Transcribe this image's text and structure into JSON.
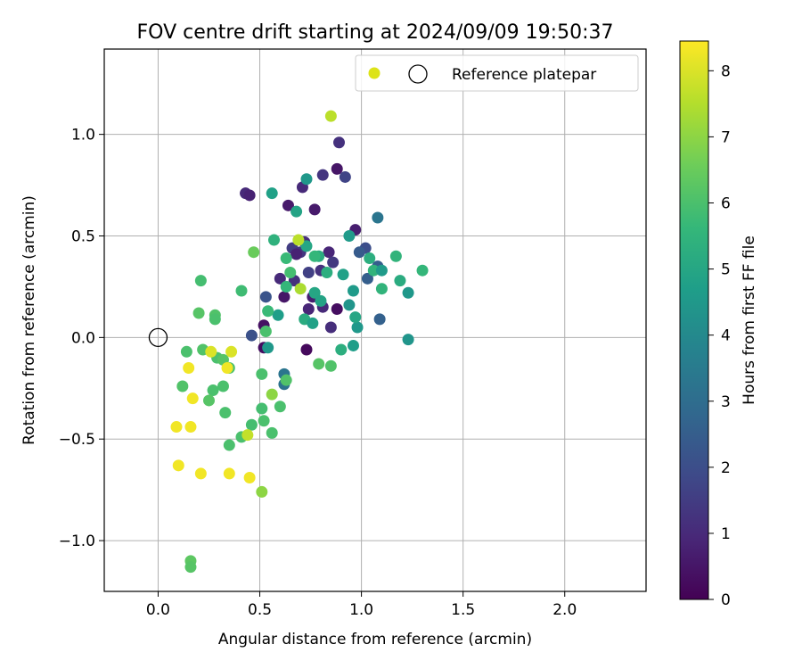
{
  "chart_data": {
    "type": "scatter",
    "title": "FOV centre drift starting at 2024/09/09 19:50:37",
    "xlabel": "Angular distance from reference (arcmin)",
    "ylabel": "Rotation from reference (arcmin)",
    "xlim": [
      -0.265,
      2.4
    ],
    "ylim": [
      -1.25,
      1.42
    ],
    "xticks": [
      0.0,
      0.5,
      1.0,
      1.5,
      2.0
    ],
    "yticks": [
      -1.0,
      -0.5,
      0.0,
      0.5,
      1.0
    ],
    "xtick_labels": [
      "0.0",
      "0.5",
      "1.0",
      "1.5",
      "2.0"
    ],
    "ytick_labels": [
      "−1.0",
      "−0.5",
      "0.0",
      "0.5",
      "1.0"
    ],
    "grid": true,
    "colormap": "viridis",
    "colorbar": {
      "label": "Hours from first FF file",
      "min": 0,
      "max": 8.45,
      "ticks": [
        0,
        1,
        2,
        3,
        4,
        5,
        6,
        7,
        8
      ],
      "tick_labels": [
        "0",
        "1",
        "2",
        "3",
        "4",
        "5",
        "6",
        "7",
        "8"
      ]
    },
    "legend": {
      "placement": "top-right",
      "entries": [
        {
          "label": "",
          "marker": "filled-circle",
          "color": "#dde318"
        },
        {
          "label": "Reference platepar",
          "marker": "open-circle",
          "color": "#000000"
        }
      ]
    },
    "reference_point": {
      "x": 0.0,
      "y": 0.0
    },
    "points": [
      {
        "x": 0.89,
        "y": 0.96,
        "t": 1.2
      },
      {
        "x": 0.88,
        "y": 0.83,
        "t": 0.5
      },
      {
        "x": 0.92,
        "y": 0.79,
        "t": 1.7
      },
      {
        "x": 0.81,
        "y": 0.8,
        "t": 1.3
      },
      {
        "x": 0.43,
        "y": 0.71,
        "t": 1.0
      },
      {
        "x": 0.45,
        "y": 0.7,
        "t": 0.8
      },
      {
        "x": 0.71,
        "y": 0.74,
        "t": 1.0
      },
      {
        "x": 0.64,
        "y": 0.65,
        "t": 0.6
      },
      {
        "x": 0.77,
        "y": 0.63,
        "t": 0.6
      },
      {
        "x": 0.97,
        "y": 0.53,
        "t": 0.7
      },
      {
        "x": 0.66,
        "y": 0.44,
        "t": 1.5
      },
      {
        "x": 0.7,
        "y": 0.42,
        "t": 1.3
      },
      {
        "x": 0.72,
        "y": 0.47,
        "t": 1.1
      },
      {
        "x": 0.68,
        "y": 0.41,
        "t": 0.8
      },
      {
        "x": 0.84,
        "y": 0.42,
        "t": 0.9
      },
      {
        "x": 0.86,
        "y": 0.37,
        "t": 1.4
      },
      {
        "x": 0.8,
        "y": 0.33,
        "t": 1.2
      },
      {
        "x": 0.74,
        "y": 0.32,
        "t": 1.6
      },
      {
        "x": 0.6,
        "y": 0.29,
        "t": 1.0
      },
      {
        "x": 0.62,
        "y": 0.2,
        "t": 0.5
      },
      {
        "x": 0.67,
        "y": 0.28,
        "t": 1.2
      },
      {
        "x": 0.76,
        "y": 0.2,
        "t": 0.7
      },
      {
        "x": 0.74,
        "y": 0.14,
        "t": 0.9
      },
      {
        "x": 0.81,
        "y": 0.15,
        "t": 1.0
      },
      {
        "x": 0.88,
        "y": 0.14,
        "t": 0.3
      },
      {
        "x": 0.85,
        "y": 0.05,
        "t": 1.1
      },
      {
        "x": 0.52,
        "y": 0.06,
        "t": 0.4
      },
      {
        "x": 0.52,
        "y": -0.05,
        "t": 0.3
      },
      {
        "x": 0.73,
        "y": -0.06,
        "t": 0.2
      },
      {
        "x": 0.46,
        "y": 0.01,
        "t": 2.1
      },
      {
        "x": 0.53,
        "y": 0.2,
        "t": 2.2
      },
      {
        "x": 1.02,
        "y": 0.44,
        "t": 2.0
      },
      {
        "x": 0.99,
        "y": 0.42,
        "t": 2.4
      },
      {
        "x": 1.08,
        "y": 0.35,
        "t": 2.5
      },
      {
        "x": 1.03,
        "y": 0.29,
        "t": 2.5
      },
      {
        "x": 1.09,
        "y": 0.09,
        "t": 2.6
      },
      {
        "x": 1.08,
        "y": 0.59,
        "t": 3.3
      },
      {
        "x": 0.62,
        "y": -0.18,
        "t": 3.3
      },
      {
        "x": 0.62,
        "y": -0.23,
        "t": 3.2
      },
      {
        "x": 0.54,
        "y": -0.05,
        "t": 4.5
      },
      {
        "x": 0.94,
        "y": 0.5,
        "t": 4.6
      },
      {
        "x": 0.91,
        "y": 0.31,
        "t": 4.8
      },
      {
        "x": 0.96,
        "y": 0.23,
        "t": 4.6
      },
      {
        "x": 0.94,
        "y": 0.16,
        "t": 4.4
      },
      {
        "x": 0.98,
        "y": 0.05,
        "t": 4.5
      },
      {
        "x": 0.97,
        "y": 0.1,
        "t": 5.0
      },
      {
        "x": 0.96,
        "y": -0.04,
        "t": 4.7
      },
      {
        "x": 0.9,
        "y": -0.06,
        "t": 5.3
      },
      {
        "x": 1.04,
        "y": 0.39,
        "t": 5.3
      },
      {
        "x": 1.06,
        "y": 0.33,
        "t": 5.5
      },
      {
        "x": 1.1,
        "y": 0.33,
        "t": 4.6
      },
      {
        "x": 1.1,
        "y": 0.24,
        "t": 5.5
      },
      {
        "x": 1.17,
        "y": 0.4,
        "t": 5.5
      },
      {
        "x": 1.19,
        "y": 0.28,
        "t": 5.2
      },
      {
        "x": 1.23,
        "y": 0.22,
        "t": 4.5
      },
      {
        "x": 1.23,
        "y": -0.01,
        "t": 4.4
      },
      {
        "x": 1.3,
        "y": 0.33,
        "t": 5.6
      },
      {
        "x": 0.73,
        "y": 0.78,
        "t": 4.5
      },
      {
        "x": 0.56,
        "y": 0.71,
        "t": 4.8
      },
      {
        "x": 0.68,
        "y": 0.62,
        "t": 4.9
      },
      {
        "x": 0.57,
        "y": 0.48,
        "t": 5.4
      },
      {
        "x": 0.73,
        "y": 0.45,
        "t": 5.0
      },
      {
        "x": 0.79,
        "y": 0.4,
        "t": 5.2
      },
      {
        "x": 0.83,
        "y": 0.32,
        "t": 5.3
      },
      {
        "x": 0.77,
        "y": 0.4,
        "t": 5.6
      },
      {
        "x": 0.63,
        "y": 0.39,
        "t": 5.7
      },
      {
        "x": 0.65,
        "y": 0.32,
        "t": 5.9
      },
      {
        "x": 0.63,
        "y": 0.25,
        "t": 5.6
      },
      {
        "x": 0.77,
        "y": 0.22,
        "t": 5.0
      },
      {
        "x": 0.8,
        "y": 0.18,
        "t": 4.9
      },
      {
        "x": 0.72,
        "y": 0.09,
        "t": 5.2
      },
      {
        "x": 0.76,
        "y": 0.07,
        "t": 4.8
      },
      {
        "x": 0.59,
        "y": 0.11,
        "t": 4.7
      },
      {
        "x": 0.54,
        "y": 0.13,
        "t": 5.7
      },
      {
        "x": 0.47,
        "y": 0.42,
        "t": 6.5
      },
      {
        "x": 0.41,
        "y": 0.23,
        "t": 5.8
      },
      {
        "x": 0.21,
        "y": 0.28,
        "t": 5.9
      },
      {
        "x": 0.2,
        "y": 0.12,
        "t": 6.2
      },
      {
        "x": 0.28,
        "y": 0.11,
        "t": 6.1
      },
      {
        "x": 0.28,
        "y": 0.09,
        "t": 6.0
      },
      {
        "x": 0.53,
        "y": 0.03,
        "t": 6.0
      },
      {
        "x": 0.14,
        "y": -0.07,
        "t": 6.0
      },
      {
        "x": 0.22,
        "y": -0.06,
        "t": 6.1
      },
      {
        "x": 0.29,
        "y": -0.1,
        "t": 6.0
      },
      {
        "x": 0.32,
        "y": -0.11,
        "t": 6.2
      },
      {
        "x": 0.35,
        "y": -0.15,
        "t": 6.0
      },
      {
        "x": 0.51,
        "y": -0.18,
        "t": 6.0
      },
      {
        "x": 0.63,
        "y": -0.21,
        "t": 6.1
      },
      {
        "x": 0.12,
        "y": -0.24,
        "t": 6.1
      },
      {
        "x": 0.27,
        "y": -0.26,
        "t": 6.0
      },
      {
        "x": 0.32,
        "y": -0.24,
        "t": 6.0
      },
      {
        "x": 0.25,
        "y": -0.31,
        "t": 6.2
      },
      {
        "x": 0.33,
        "y": -0.37,
        "t": 6.0
      },
      {
        "x": 0.51,
        "y": -0.35,
        "t": 5.9
      },
      {
        "x": 0.6,
        "y": -0.34,
        "t": 6.0
      },
      {
        "x": 0.46,
        "y": -0.43,
        "t": 5.9
      },
      {
        "x": 0.52,
        "y": -0.41,
        "t": 6.0
      },
      {
        "x": 0.56,
        "y": -0.47,
        "t": 6.0
      },
      {
        "x": 0.41,
        "y": -0.49,
        "t": 6.0
      },
      {
        "x": 0.35,
        "y": -0.53,
        "t": 6.0
      },
      {
        "x": 0.79,
        "y": -0.13,
        "t": 6.2
      },
      {
        "x": 0.85,
        "y": -0.14,
        "t": 6.1
      },
      {
        "x": 0.16,
        "y": -1.1,
        "t": 6.3
      },
      {
        "x": 0.16,
        "y": -1.13,
        "t": 6.2
      },
      {
        "x": 0.51,
        "y": -0.76,
        "t": 7.0
      },
      {
        "x": 0.56,
        "y": -0.28,
        "t": 7.0
      },
      {
        "x": 0.7,
        "y": 0.24,
        "t": 7.4
      },
      {
        "x": 0.69,
        "y": 0.48,
        "t": 7.6
      },
      {
        "x": 0.85,
        "y": 1.09,
        "t": 7.6
      },
      {
        "x": 0.44,
        "y": -0.48,
        "t": 7.7
      },
      {
        "x": 0.26,
        "y": -0.07,
        "t": 8.0
      },
      {
        "x": 0.36,
        "y": -0.07,
        "t": 8.0
      },
      {
        "x": 0.34,
        "y": -0.15,
        "t": 8.3
      },
      {
        "x": 0.15,
        "y": -0.15,
        "t": 8.3
      },
      {
        "x": 0.17,
        "y": -0.3,
        "t": 8.3
      },
      {
        "x": 0.09,
        "y": -0.44,
        "t": 8.3
      },
      {
        "x": 0.16,
        "y": -0.44,
        "t": 8.3
      },
      {
        "x": 0.1,
        "y": -0.63,
        "t": 8.3
      },
      {
        "x": 0.21,
        "y": -0.67,
        "t": 8.3
      },
      {
        "x": 0.35,
        "y": -0.67,
        "t": 8.3
      },
      {
        "x": 0.45,
        "y": -0.69,
        "t": 8.3
      }
    ]
  }
}
